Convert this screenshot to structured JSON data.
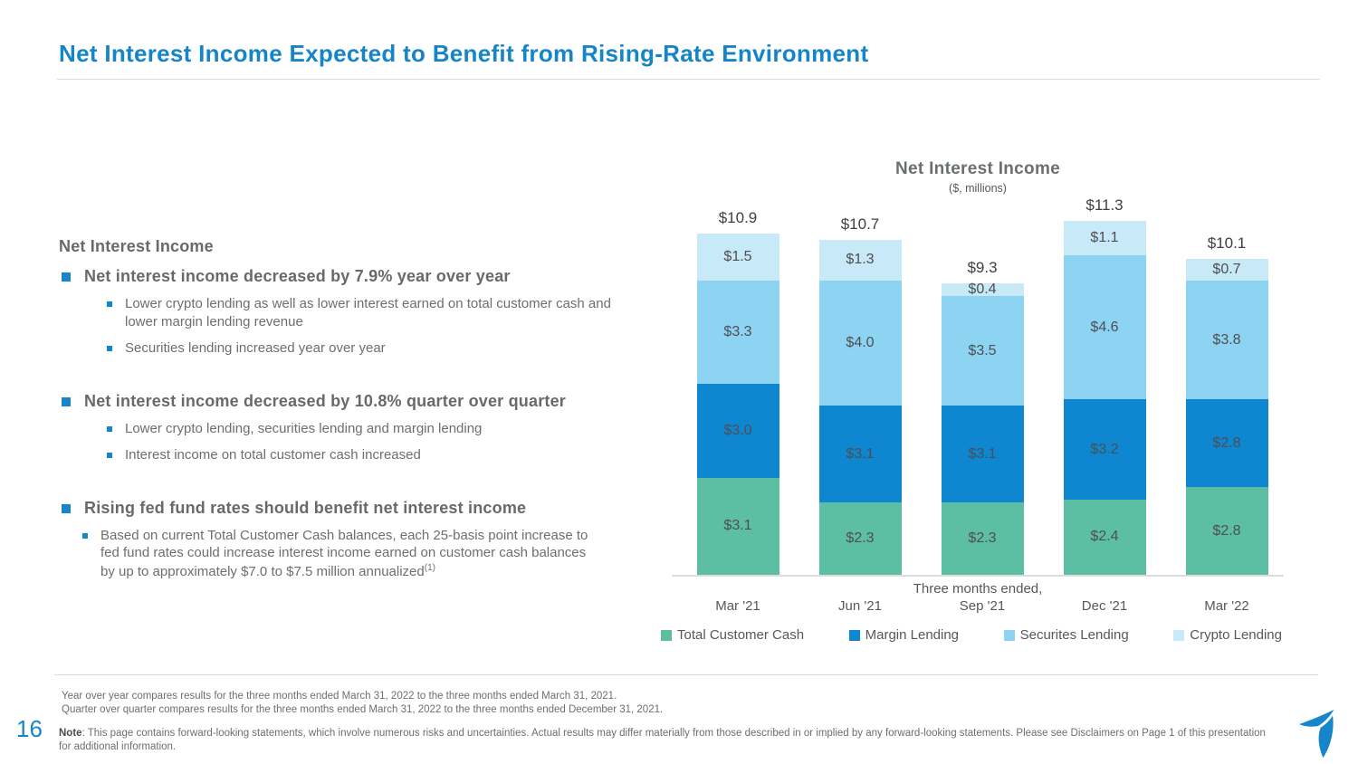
{
  "slide": {
    "title": "Net Interest Income Expected to Benefit from Rising-Rate Environment",
    "page_number": "16"
  },
  "left_panel": {
    "heading": "Net Interest Income",
    "bullets": [
      {
        "text": "Net interest income decreased by 7.9% year over year",
        "subs": [
          "Lower crypto lending as well as lower interest earned on total customer cash and lower margin lending revenue",
          "Securities lending increased year over year"
        ]
      },
      {
        "text": "Net interest income decreased by 10.8% quarter over quarter",
        "subs": [
          "Lower crypto lending, securities lending and margin lending",
          "Interest income on total customer cash increased"
        ]
      },
      {
        "text": "Rising fed fund rates should benefit net interest income",
        "subs": [
          "Based on current Total Customer Cash balances, each 25-basis point increase to fed fund rates could increase interest income earned on customer cash balances by up to approximately $7.0 to $7.5 million annualized"
        ],
        "sup": "(1)"
      }
    ]
  },
  "chart_data": {
    "type": "bar",
    "stacked": true,
    "title": "Net Interest Income",
    "subtitle": "($, millions)",
    "xlabel": "Three months ended,",
    "categories": [
      "Mar '21",
      "Jun '21",
      "Sep '21",
      "Dec '21",
      "Mar '22"
    ],
    "series": [
      {
        "name": "Total Customer Cash",
        "color": "#5CBFA4",
        "values": [
          3.1,
          2.3,
          2.3,
          2.4,
          2.8
        ]
      },
      {
        "name": "Margin Lending",
        "color": "#0E86D0",
        "values": [
          3.0,
          3.1,
          3.1,
          3.2,
          2.8
        ]
      },
      {
        "name": "Securites Lending",
        "color": "#8DD3F2",
        "values": [
          3.3,
          4.0,
          3.5,
          4.6,
          3.8
        ]
      },
      {
        "name": "Crypto Lending",
        "color": "#C8E9F8",
        "values": [
          1.5,
          1.3,
          0.4,
          1.1,
          0.7
        ]
      }
    ],
    "totals": [
      "$10.9",
      "$10.7",
      "$9.3",
      "$11.3",
      "$10.1"
    ],
    "ylim": [
      0,
      12
    ],
    "grid": false,
    "legend_position": "bottom"
  },
  "footer": {
    "footnote_line1": "Year over year compares results for the three months ended March 31, 2022 to the three months ended March 31, 2021.",
    "footnote_line2": "Quarter over quarter compares results for the three months ended March 31, 2022 to the three months ended December 31, 2021.",
    "note_label": "Note",
    "note_text": ": This page contains forward-looking statements, which involve numerous risks and uncertainties. Actual results may differ materially from those described in or implied by any forward-looking statements. Please see Disclaimers  on Page 1 of this presentation for additional information."
  },
  "logo": {
    "icon": "tradestation-t-icon",
    "color": "#1586C9"
  }
}
